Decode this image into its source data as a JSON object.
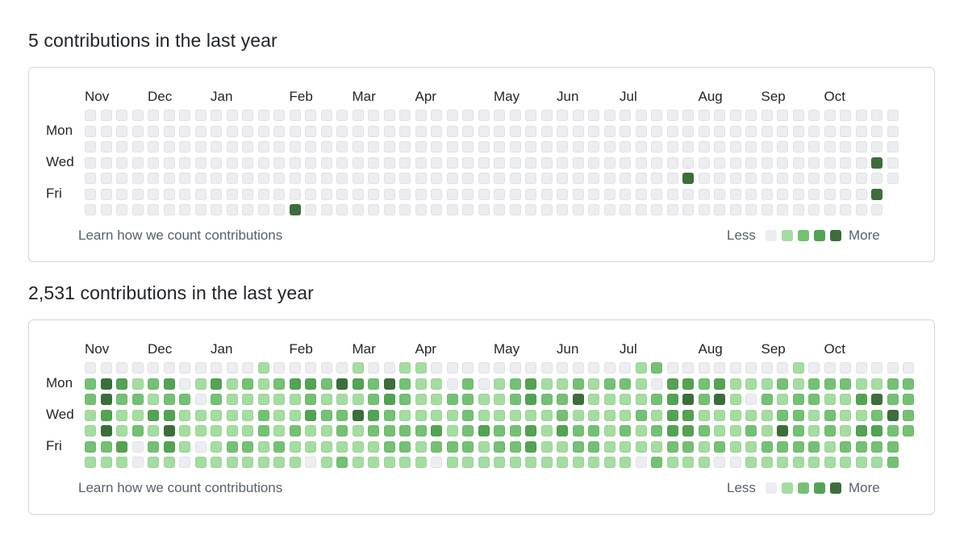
{
  "colors": {
    "level0": "#ebedf0",
    "level1": "#a4dda0",
    "level2": "#73c173",
    "level3": "#52a352",
    "level4": "#3c6e3c"
  },
  "graphs": [
    {
      "title": "5 contributions in the last year",
      "months": [
        "Nov",
        "Dec",
        "Jan",
        "Feb",
        "Mar",
        "Apr",
        "May",
        "Jun",
        "Jul",
        "Aug",
        "Sep",
        "Oct"
      ],
      "day_labels": [
        "Mon",
        "Wed",
        "Fri"
      ],
      "footer_link": "Learn how we count contributions",
      "legend_less": "Less",
      "legend_more": "More",
      "weeks": [
        "0000000",
        "0000000",
        "0000000",
        "0000000",
        "0000000",
        "0000000",
        "0000000",
        "0000000",
        "0000000",
        "0000000",
        "0000000",
        "0000000",
        "0000000",
        "0000004",
        "0000000",
        "0000000",
        "0000000",
        "0000000",
        "0000000",
        "0000000",
        "0000000",
        "0000000",
        "0000000",
        "0000000",
        "0000000",
        "0000000",
        "0000000",
        "0000000",
        "0000000",
        "0000000",
        "0000000",
        "0000000",
        "0000000",
        "0000000",
        "0000000",
        "0000000",
        "0000000",
        "0000000",
        "0000400",
        "0000000",
        "0000000",
        "0000000",
        "0000000",
        "0000000",
        "0000000",
        "0000000",
        "0000000",
        "0000000",
        "0000000",
        "0000000",
        "0004040",
        "00000"
      ]
    },
    {
      "title": "2,531 contributions in the last year",
      "months": [
        "Nov",
        "Dec",
        "Jan",
        "Feb",
        "Mar",
        "Apr",
        "May",
        "Jun",
        "Jul",
        "Aug",
        "Sep",
        "Oct"
      ],
      "day_labels": [
        "Mon",
        "Wed",
        "Fri"
      ],
      "footer_link": "Learn how we count contributions",
      "legend_less": "Less",
      "legend_more": "More",
      "weeks": [
        "0221121",
        "0443421",
        "0321131",
        "0121200",
        "0213121",
        "0323431",
        "0021110",
        "0101101",
        "0321111",
        "0111121",
        "0211121",
        "1112211",
        "0211121",
        "0311211",
        "0323110",
        "0212111",
        "0412212",
        "1314111",
        "0223211",
        "0432221",
        "1221221",
        "1111211",
        "0111320",
        "0021121",
        "0222221",
        "0011311",
        "0111221",
        "0221221",
        "0331331",
        "0121111",
        "0122311",
        "0241221",
        "0111221",
        "0211111",
        "0211211",
        "1112110",
        "2021212",
        "0333321",
        "0343321",
        "0221211",
        "0341120",
        "0111110",
        "0101211",
        "0121121",
        "0212421",
        "1122221",
        "0221121",
        "0212211",
        "0211121",
        "0131321",
        "0142321",
        "0224222",
        "02222"
      ]
    }
  ]
}
